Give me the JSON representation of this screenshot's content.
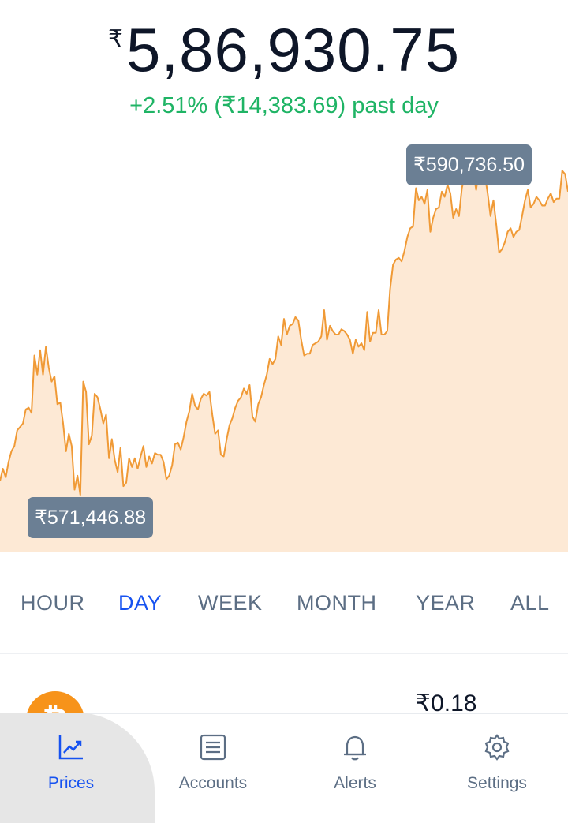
{
  "header": {
    "currency_symbol": "₹",
    "price": "5,86,930.75",
    "change": "+2.51% (₹14,383.69) past day",
    "change_color": "#1fb465"
  },
  "chart_data": {
    "type": "area",
    "title": "",
    "xlabel": "",
    "ylabel": "",
    "line_color": "#f09a36",
    "fill_color": "#fde9d5",
    "high_label": "₹590,736.50",
    "low_label": "₹571,446.88",
    "ylim": [
      568400,
      592400
    ],
    "values": [
      572500,
      573200,
      572700,
      573600,
      574200,
      574500,
      575400,
      575600,
      575800,
      576600,
      576700,
      576400,
      579700,
      578600,
      580000,
      578600,
      580200,
      579000,
      578200,
      578500,
      576900,
      577000,
      575800,
      574200,
      575200,
      574500,
      572000,
      572800,
      571700,
      578200,
      577600,
      574600,
      575100,
      577500,
      577300,
      576600,
      575800,
      576300,
      573800,
      574900,
      573700,
      573000,
      574400,
      572200,
      572400,
      573800,
      573300,
      573800,
      573200,
      573900,
      574500,
      573300,
      573900,
      573500,
      574100,
      574000,
      574000,
      573600,
      572600,
      572800,
      573400,
      574600,
      574700,
      574300,
      575000,
      575900,
      576500,
      577500,
      576800,
      576600,
      577200,
      577500,
      577400,
      577600,
      576300,
      575200,
      575400,
      574000,
      573900,
      574900,
      575700,
      576100,
      576700,
      577100,
      577300,
      577800,
      577500,
      578000,
      576200,
      575900,
      576900,
      577300,
      578000,
      578600,
      579500,
      579200,
      579500,
      580800,
      580300,
      581800,
      580900,
      581400,
      581500,
      581900,
      581700,
      580600,
      579700,
      579800,
      579800,
      580300,
      580400,
      580500,
      580800,
      582300,
      580600,
      581400,
      581100,
      580900,
      580900,
      581200,
      581100,
      580900,
      580600,
      579800,
      580600,
      580200,
      580400,
      580000,
      582200,
      580500,
      581000,
      581000,
      582300,
      580900,
      580900,
      581100,
      583500,
      584900,
      585200,
      585300,
      585100,
      585700,
      586500,
      587000,
      587100,
      589300,
      588600,
      588800,
      588400,
      589200,
      586800,
      587600,
      588100,
      588200,
      589100,
      588800,
      589500,
      589000,
      587600,
      588100,
      587700,
      589300,
      590000,
      589800,
      590100,
      590200,
      589200,
      590400,
      589800,
      590100,
      589000,
      587700,
      588600,
      587200,
      585600,
      585800,
      586200,
      586800,
      587000,
      586500,
      586800,
      586900,
      587700,
      588600,
      589200,
      588200,
      588400,
      588800,
      588600,
      588300,
      588300,
      588700,
      589000,
      588500,
      588700,
      588700,
      590300,
      590100,
      589100
    ]
  },
  "ranges": {
    "hour": "HOUR",
    "day": "DAY",
    "week": "WEEK",
    "month": "MONTH",
    "year": "YEAR",
    "all": "ALL",
    "active": "DAY",
    "active_color": "#1652f0"
  },
  "asset": {
    "logo_glyph": "₿",
    "name_partial": "..",
    "price": "₹0.18"
  },
  "nav": {
    "prices": "Prices",
    "accounts": "Accounts",
    "alerts": "Alerts",
    "settings": "Settings",
    "active": "Prices"
  }
}
